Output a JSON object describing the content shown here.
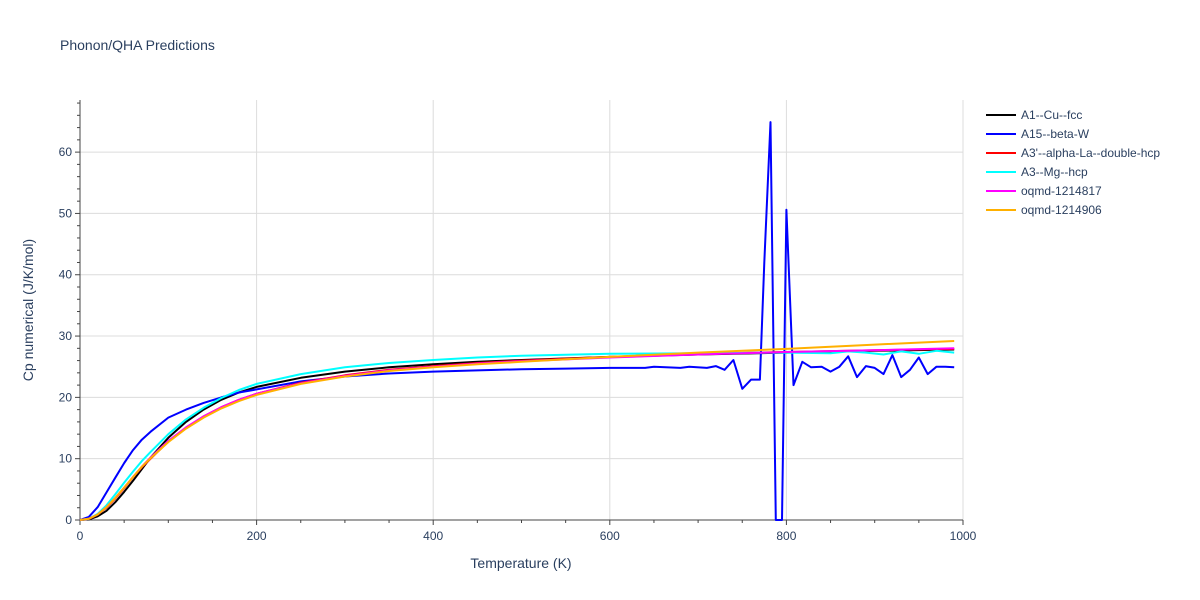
{
  "chart_data": {
    "type": "line",
    "title": "Phonon/QHA Predictions",
    "xlabel": "Temperature (K)",
    "ylabel": "Cp numerical (J/K/mol)",
    "xlim": [
      0,
      1000
    ],
    "ylim": [
      0,
      68.5
    ],
    "xticks": [
      0,
      200,
      400,
      600,
      800,
      1000
    ],
    "yticks": [
      0,
      10,
      20,
      30,
      40,
      50,
      60
    ],
    "xtick_labels": [
      "0",
      "200",
      "400",
      "600",
      "800",
      "1000"
    ],
    "ytick_labels": [
      "0",
      "10",
      "20",
      "30",
      "40",
      "50",
      "60"
    ],
    "grid": true,
    "legend_position": "top-right outside",
    "series": [
      {
        "name": "A1--Cu--fcc",
        "color": "#000000",
        "x": [
          0,
          10,
          20,
          30,
          40,
          50,
          60,
          70,
          80,
          100,
          120,
          140,
          160,
          180,
          200,
          250,
          300,
          350,
          400,
          450,
          500,
          600,
          700,
          800,
          900,
          990
        ],
        "y": [
          0,
          0.1,
          0.6,
          1.5,
          2.9,
          4.6,
          6.4,
          8.3,
          10.2,
          13.4,
          16.0,
          18.0,
          19.6,
          20.8,
          21.7,
          23.2,
          24.2,
          24.9,
          25.4,
          25.8,
          26.1,
          26.6,
          27.0,
          27.3,
          27.6,
          27.8
        ]
      },
      {
        "name": "A15--beta-W",
        "color": "#0000ff",
        "x": [
          0,
          10,
          20,
          30,
          40,
          50,
          60,
          70,
          80,
          100,
          120,
          140,
          160,
          180,
          200,
          250,
          300,
          350,
          400,
          450,
          500,
          550,
          600,
          640,
          650,
          680,
          690,
          710,
          720,
          730,
          740,
          750,
          760,
          770,
          775,
          782,
          788,
          795,
          800,
          808,
          818,
          828,
          840,
          850,
          860,
          870,
          880,
          890,
          900,
          910,
          920,
          930,
          940,
          950,
          960,
          970,
          980,
          990
        ],
        "y": [
          0,
          0.5,
          2.1,
          4.5,
          6.9,
          9.3,
          11.4,
          13.1,
          14.4,
          16.7,
          18.0,
          19.1,
          20.0,
          20.8,
          21.3,
          22.6,
          23.4,
          23.9,
          24.2,
          24.4,
          24.6,
          24.7,
          24.8,
          24.8,
          25.0,
          24.8,
          25.0,
          24.8,
          25.1,
          24.5,
          26.1,
          21.4,
          22.9,
          22.9,
          42.0,
          64.9,
          0,
          0,
          50.6,
          22.0,
          25.8,
          24.9,
          25.0,
          24.2,
          25.0,
          26.7,
          23.3,
          25.1,
          24.8,
          23.8,
          26.9,
          23.3,
          24.5,
          26.5,
          23.8,
          25.0,
          25.0,
          24.9
        ]
      },
      {
        "name": "A3'--alpha-La--double-hcp",
        "color": "#ff0000",
        "x": [
          0,
          10,
          20,
          30,
          40,
          50,
          60,
          70,
          80,
          100,
          120,
          140,
          160,
          180,
          200,
          250,
          300,
          350,
          400,
          450,
          500,
          600,
          700,
          800,
          900,
          990
        ],
        "y": [
          0,
          0.2,
          0.9,
          2.0,
          3.5,
          5.2,
          7.0,
          8.6,
          10.0,
          12.8,
          15.0,
          16.9,
          18.4,
          19.6,
          20.6,
          22.4,
          23.6,
          24.5,
          25.1,
          25.6,
          26.0,
          26.6,
          27.1,
          27.4,
          27.7,
          27.9
        ]
      },
      {
        "name": "A3--Mg--hcp",
        "color": "#00ffff",
        "x": [
          0,
          10,
          20,
          30,
          40,
          50,
          60,
          70,
          80,
          100,
          120,
          140,
          160,
          180,
          200,
          250,
          300,
          350,
          400,
          450,
          500,
          600,
          700,
          800,
          850,
          870,
          890,
          910,
          930,
          950,
          970,
          990
        ],
        "y": [
          0,
          0.2,
          1.0,
          2.4,
          4.2,
          6.1,
          7.9,
          9.6,
          11.1,
          14.0,
          16.4,
          18.3,
          19.9,
          21.2,
          22.2,
          23.8,
          24.9,
          25.6,
          26.1,
          26.5,
          26.8,
          27.1,
          27.2,
          27.3,
          27.2,
          27.5,
          27.3,
          27.0,
          27.5,
          27.1,
          27.6,
          27.3
        ]
      },
      {
        "name": "oqmd-1214817",
        "color": "#ff00ff",
        "x": [
          0,
          10,
          20,
          30,
          40,
          50,
          60,
          70,
          80,
          100,
          120,
          140,
          160,
          180,
          200,
          250,
          300,
          350,
          400,
          450,
          500,
          600,
          700,
          800,
          900,
          990
        ],
        "y": [
          0,
          0.2,
          0.9,
          2.1,
          3.6,
          5.3,
          7.0,
          8.7,
          10.2,
          12.9,
          15.1,
          16.9,
          18.4,
          19.6,
          20.6,
          22.3,
          23.5,
          24.4,
          25.0,
          25.5,
          25.9,
          26.5,
          27.0,
          27.4,
          27.7,
          28.0
        ]
      },
      {
        "name": "oqmd-1214906",
        "color": "#ffb000",
        "x": [
          0,
          10,
          20,
          30,
          40,
          50,
          60,
          70,
          80,
          100,
          120,
          140,
          160,
          180,
          200,
          250,
          300,
          350,
          400,
          450,
          500,
          600,
          700,
          800,
          900,
          990
        ],
        "y": [
          0,
          0.2,
          0.9,
          2.1,
          3.6,
          5.3,
          7.0,
          8.7,
          10.1,
          12.7,
          14.9,
          16.7,
          18.2,
          19.4,
          20.4,
          22.2,
          23.4,
          24.3,
          24.9,
          25.4,
          25.8,
          26.6,
          27.3,
          27.9,
          28.6,
          29.2
        ]
      }
    ]
  }
}
